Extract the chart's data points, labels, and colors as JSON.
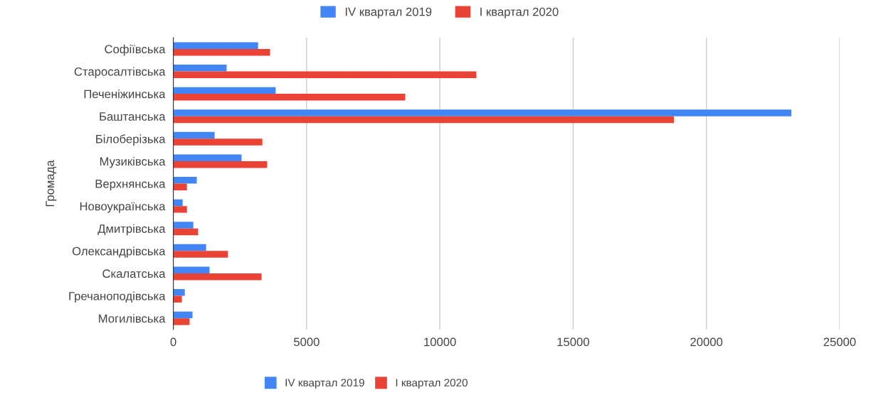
{
  "chart_data": {
    "type": "bar",
    "orientation": "horizontal",
    "ylabel": "Громада",
    "categories": [
      "Софіївська",
      "Старосалтівська",
      "Печеніжинська",
      "Баштанська",
      "Білоберізька",
      "Музиківська",
      "Верхнянська",
      "Новоукраїнська",
      "Дмитрівська",
      "Олександрівська",
      "Скалатська",
      "Гречаноподівська",
      "Могилівська"
    ],
    "series": [
      {
        "name": "IV квартал 2019",
        "color": "#4285f4",
        "values": [
          3180,
          2000,
          3840,
          23190,
          1550,
          2560,
          880,
          350,
          750,
          1230,
          1360,
          430,
          720
        ]
      },
      {
        "name": "I квартал 2020",
        "color": "#ea4335",
        "values": [
          3630,
          11370,
          8700,
          18780,
          3340,
          3520,
          510,
          510,
          930,
          2050,
          3310,
          320,
          610
        ]
      }
    ],
    "xlim": [
      0,
      25000
    ],
    "xticks": [
      0,
      5000,
      10000,
      15000,
      20000,
      25000
    ],
    "grid": "x",
    "legend": "top"
  }
}
